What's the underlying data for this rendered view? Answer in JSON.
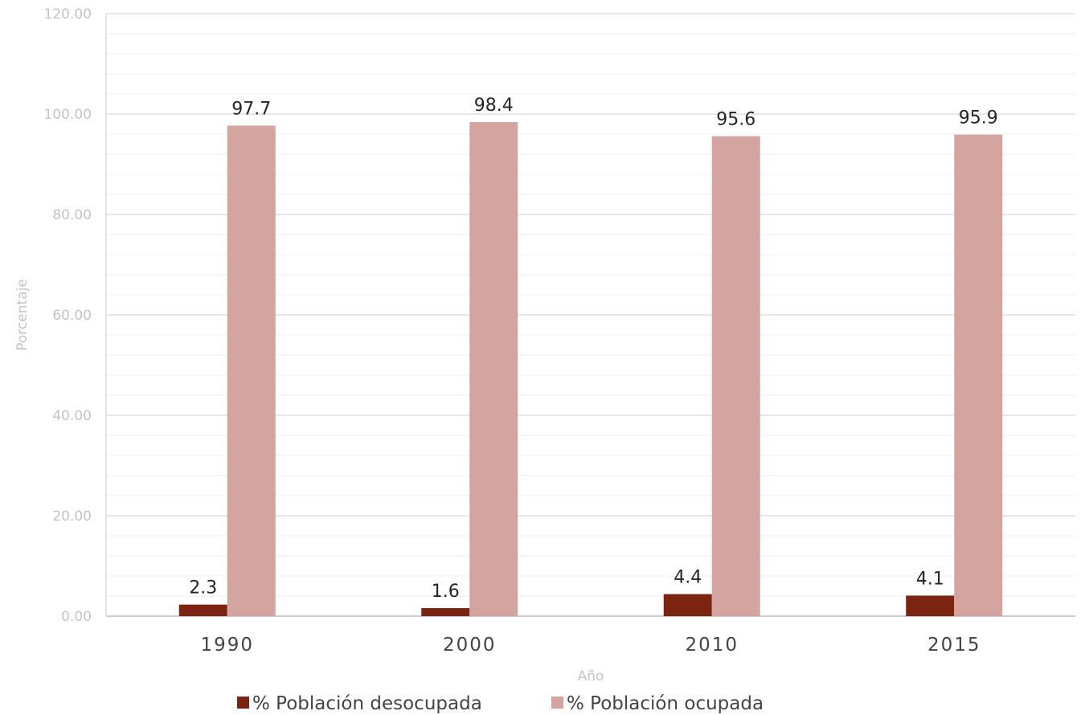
{
  "chart_data": {
    "type": "bar",
    "categories": [
      "1990",
      "2000",
      "2010",
      "2015"
    ],
    "series": [
      {
        "name": "% Población desocupada",
        "values": [
          2.3,
          1.6,
          4.4,
          4.1
        ],
        "labels": [
          "2.3",
          "1.6",
          "4.4",
          "4.1"
        ],
        "color": "#7b2412"
      },
      {
        "name": "% Población ocupada",
        "values": [
          97.7,
          98.4,
          95.6,
          95.9
        ],
        "labels": [
          "97.7",
          "98.4",
          "95.6",
          "95.9"
        ],
        "color": "#d4a5a0"
      }
    ],
    "title": "",
    "xlabel": "Año",
    "ylabel": "Porcentaje",
    "ylim": [
      0,
      120
    ],
    "yticks": [
      "0.00",
      "20.00",
      "40.00",
      "60.00",
      "80.00",
      "100.00",
      "120.00"
    ],
    "grid": true,
    "legend_position": "bottom"
  }
}
